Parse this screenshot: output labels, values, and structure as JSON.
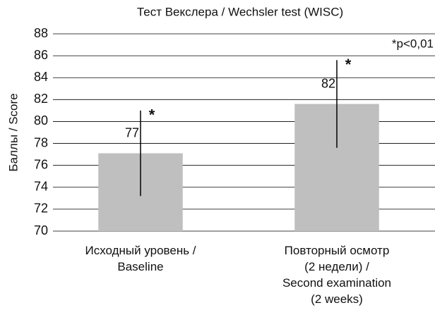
{
  "chart_data": {
    "type": "bar",
    "title": "Тест Векслера / Wechsler test (WISC)",
    "y_label": "Баллы / Score",
    "categories": [
      "Исходный уровень /\nBaseline",
      "Повторный осмотр\n(2 недели) /\nSecond examination\n(2 weeks)"
    ],
    "values": [
      77.1,
      81.6
    ],
    "value_labels": [
      "77",
      "82"
    ],
    "errors": [
      3.9,
      4.0
    ],
    "significance_marks": [
      "*",
      "*"
    ],
    "note": "*p<0,01",
    "color": "#bfbfbf",
    "error_color": "#000000",
    "ylim": [
      70,
      88
    ],
    "yticks": [
      70,
      72,
      74,
      76,
      78,
      80,
      82,
      84,
      86,
      88
    ],
    "grid": true
  }
}
